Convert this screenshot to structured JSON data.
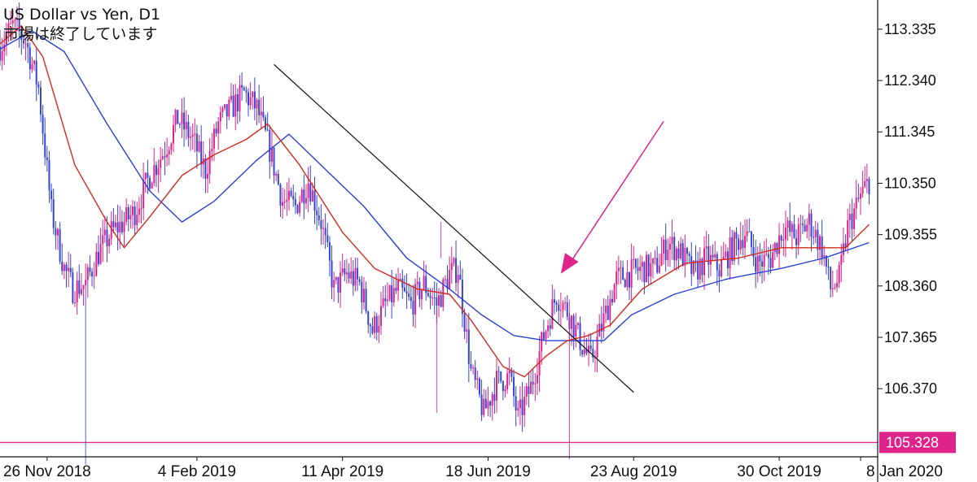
{
  "header": {
    "symbol_title": "US Dollar vs Yen, D1",
    "status_text": "市場は終了しています"
  },
  "colors": {
    "bull_candle": "#e0238a",
    "bear_candle": "#3346d6",
    "ma_fast": "#d42a1c",
    "ma_slow": "#2b3fd6",
    "trendline": "#111111",
    "arrow": "#e0238a",
    "price_line": "#e0238a",
    "axis": "#111111"
  },
  "chart_data": {
    "type": "candlestick",
    "title": "US Dollar vs Yen, D1",
    "timeframe": "D1",
    "ylim": [
      105.05,
      113.9
    ],
    "yticks": [
      "113.335",
      "112.340",
      "111.345",
      "110.350",
      "109.355",
      "108.360",
      "107.365",
      "106.370"
    ],
    "xticks": [
      "26 Nov 2018",
      "4 Feb 2019",
      "11 Apr 2019",
      "18 Jun 2019",
      "23 Aug 2019",
      "30 Oct 2019",
      "8 Jan 2020"
    ],
    "current_price_label": "105.328",
    "current_price": 105.328,
    "price_series": [
      {
        "t": 0,
        "p": 113.0
      },
      {
        "t": 6,
        "p": 113.4
      },
      {
        "t": 12,
        "p": 113.1
      },
      {
        "t": 18,
        "p": 112.2
      },
      {
        "t": 24,
        "p": 109.8
      },
      {
        "t": 30,
        "p": 108.7
      },
      {
        "t": 34,
        "p": 108.3
      },
      {
        "t": 40,
        "p": 108.4
      },
      {
        "t": 46,
        "p": 109.0
      },
      {
        "t": 52,
        "p": 109.4
      },
      {
        "t": 58,
        "p": 109.6
      },
      {
        "t": 63,
        "p": 109.8
      },
      {
        "t": 70,
        "p": 110.5
      },
      {
        "t": 77,
        "p": 111.0
      },
      {
        "t": 83,
        "p": 111.6
      },
      {
        "t": 90,
        "p": 111.2
      },
      {
        "t": 96,
        "p": 110.6
      },
      {
        "t": 102,
        "p": 111.5
      },
      {
        "t": 108,
        "p": 111.8
      },
      {
        "t": 114,
        "p": 112.1
      },
      {
        "t": 120,
        "p": 111.8
      },
      {
        "t": 126,
        "p": 111.0
      },
      {
        "t": 132,
        "p": 110.0
      },
      {
        "t": 138,
        "p": 109.9
      },
      {
        "t": 144,
        "p": 110.4
      },
      {
        "t": 150,
        "p": 109.6
      },
      {
        "t": 156,
        "p": 108.3
      },
      {
        "t": 162,
        "p": 108.6
      },
      {
        "t": 168,
        "p": 108.4
      },
      {
        "t": 174,
        "p": 107.5
      },
      {
        "t": 180,
        "p": 108.0
      },
      {
        "t": 186,
        "p": 108.3
      },
      {
        "t": 192,
        "p": 108.0
      },
      {
        "t": 198,
        "p": 108.4
      },
      {
        "t": 204,
        "p": 108.0
      },
      {
        "t": 210,
        "p": 108.6
      },
      {
        "t": 214,
        "p": 108.7
      },
      {
        "t": 220,
        "p": 106.7
      },
      {
        "t": 226,
        "p": 105.9
      },
      {
        "t": 232,
        "p": 106.5
      },
      {
        "t": 238,
        "p": 106.6
      },
      {
        "t": 242,
        "p": 105.8
      },
      {
        "t": 248,
        "p": 106.4
      },
      {
        "t": 254,
        "p": 107.4
      },
      {
        "t": 260,
        "p": 108.2
      },
      {
        "t": 266,
        "p": 107.8
      },
      {
        "t": 272,
        "p": 107.2
      },
      {
        "t": 276,
        "p": 106.9
      },
      {
        "t": 282,
        "p": 107.7
      },
      {
        "t": 288,
        "p": 108.5
      },
      {
        "t": 294,
        "p": 108.6
      },
      {
        "t": 300,
        "p": 108.7
      },
      {
        "t": 306,
        "p": 108.7
      },
      {
        "t": 312,
        "p": 109.2
      },
      {
        "t": 318,
        "p": 109.0
      },
      {
        "t": 324,
        "p": 108.6
      },
      {
        "t": 330,
        "p": 108.9
      },
      {
        "t": 336,
        "p": 108.7
      },
      {
        "t": 342,
        "p": 109.1
      },
      {
        "t": 348,
        "p": 109.4
      },
      {
        "t": 354,
        "p": 108.8
      },
      {
        "t": 360,
        "p": 108.9
      },
      {
        "t": 366,
        "p": 109.5
      },
      {
        "t": 372,
        "p": 109.3
      },
      {
        "t": 378,
        "p": 109.6
      },
      {
        "t": 384,
        "p": 109.1
      },
      {
        "t": 388,
        "p": 108.3
      },
      {
        "t": 392,
        "p": 108.5
      },
      {
        "t": 396,
        "p": 109.5
      },
      {
        "t": 402,
        "p": 110.1
      },
      {
        "t": 406,
        "p": 110.4
      }
    ],
    "moving_average_fast": [
      {
        "t": 0,
        "p": 113.05
      },
      {
        "t": 10,
        "p": 113.4
      },
      {
        "t": 20,
        "p": 112.8
      },
      {
        "t": 35,
        "p": 110.7
      },
      {
        "t": 50,
        "p": 109.6
      },
      {
        "t": 58,
        "p": 109.1
      },
      {
        "t": 70,
        "p": 109.7
      },
      {
        "t": 85,
        "p": 110.5
      },
      {
        "t": 100,
        "p": 110.9
      },
      {
        "t": 115,
        "p": 111.2
      },
      {
        "t": 125,
        "p": 111.5
      },
      {
        "t": 140,
        "p": 110.7
      },
      {
        "t": 160,
        "p": 109.4
      },
      {
        "t": 175,
        "p": 108.7
      },
      {
        "t": 195,
        "p": 108.3
      },
      {
        "t": 210,
        "p": 108.2
      },
      {
        "t": 220,
        "p": 107.7
      },
      {
        "t": 235,
        "p": 106.8
      },
      {
        "t": 245,
        "p": 106.6
      },
      {
        "t": 255,
        "p": 107.0
      },
      {
        "t": 265,
        "p": 107.3
      },
      {
        "t": 275,
        "p": 107.4
      },
      {
        "t": 285,
        "p": 107.6
      },
      {
        "t": 300,
        "p": 108.3
      },
      {
        "t": 320,
        "p": 108.8
      },
      {
        "t": 345,
        "p": 108.9
      },
      {
        "t": 365,
        "p": 109.1
      },
      {
        "t": 385,
        "p": 109.1
      },
      {
        "t": 395,
        "p": 109.1
      },
      {
        "t": 406,
        "p": 109.55
      }
    ],
    "moving_average_slow": [
      {
        "t": 0,
        "p": 112.95
      },
      {
        "t": 15,
        "p": 113.3
      },
      {
        "t": 30,
        "p": 112.9
      },
      {
        "t": 50,
        "p": 111.5
      },
      {
        "t": 70,
        "p": 110.2
      },
      {
        "t": 85,
        "p": 109.6
      },
      {
        "t": 100,
        "p": 110.0
      },
      {
        "t": 120,
        "p": 110.8
      },
      {
        "t": 135,
        "p": 111.3
      },
      {
        "t": 150,
        "p": 110.7
      },
      {
        "t": 170,
        "p": 109.9
      },
      {
        "t": 190,
        "p": 108.9
      },
      {
        "t": 210,
        "p": 108.3
      },
      {
        "t": 225,
        "p": 107.8
      },
      {
        "t": 240,
        "p": 107.4
      },
      {
        "t": 255,
        "p": 107.3
      },
      {
        "t": 270,
        "p": 107.3
      },
      {
        "t": 282,
        "p": 107.3
      },
      {
        "t": 295,
        "p": 107.8
      },
      {
        "t": 315,
        "p": 108.2
      },
      {
        "t": 340,
        "p": 108.5
      },
      {
        "t": 365,
        "p": 108.7
      },
      {
        "t": 385,
        "p": 108.9
      },
      {
        "t": 406,
        "p": 109.2
      }
    ],
    "trendline": {
      "from": {
        "t": 128,
        "p": 112.65
      },
      "to": {
        "t": 296,
        "p": 106.3
      }
    },
    "annotation_arrow": {
      "from": {
        "t": 310,
        "p": 111.55
      },
      "to": {
        "t": 262,
        "p": 108.6
      }
    }
  }
}
